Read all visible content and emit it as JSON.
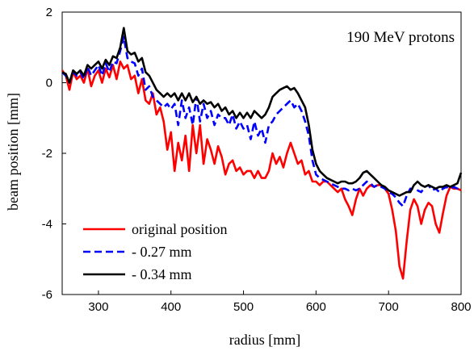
{
  "chart_data": {
    "type": "line",
    "title": "",
    "annotation": "190 MeV protons",
    "xlabel": "radius [mm]",
    "ylabel": "beam position [mm]",
    "xlim": [
      250,
      800
    ],
    "ylim": [
      -6,
      2
    ],
    "xticks": [
      300,
      400,
      500,
      600,
      700,
      800
    ],
    "yticks": [
      -6,
      -4,
      -2,
      0,
      2
    ],
    "x_tick_labels": [
      "300",
      "400",
      "500",
      "600",
      "700",
      "800"
    ],
    "y_tick_labels": [
      "-6",
      "-4",
      "-2",
      "0",
      "2"
    ],
    "grid": false,
    "legend_position": "bottom-left",
    "series": [
      {
        "name": "original position",
        "color": "#ff0000",
        "dash": "solid",
        "x": [
          250,
          255,
          260,
          265,
          270,
          275,
          280,
          285,
          290,
          295,
          300,
          305,
          310,
          315,
          320,
          325,
          330,
          335,
          340,
          345,
          350,
          355,
          360,
          365,
          370,
          375,
          380,
          385,
          390,
          395,
          400,
          405,
          410,
          415,
          420,
          425,
          430,
          435,
          440,
          445,
          450,
          455,
          460,
          465,
          470,
          475,
          480,
          485,
          490,
          495,
          500,
          505,
          510,
          515,
          520,
          525,
          530,
          535,
          540,
          545,
          550,
          555,
          560,
          565,
          570,
          575,
          580,
          585,
          590,
          595,
          600,
          605,
          610,
          615,
          620,
          625,
          630,
          635,
          640,
          645,
          650,
          655,
          660,
          665,
          670,
          675,
          680,
          685,
          690,
          695,
          700,
          705,
          710,
          715,
          720,
          725,
          730,
          735,
          740,
          745,
          750,
          755,
          760,
          765,
          770,
          775,
          780,
          785,
          790,
          795,
          800
        ],
        "y": [
          0.35,
          0.2,
          -0.2,
          0.3,
          0.1,
          0.2,
          0.0,
          0.4,
          -0.1,
          0.2,
          0.35,
          0.0,
          0.4,
          0.15,
          0.5,
          0.1,
          0.6,
          0.4,
          0.5,
          0.1,
          0.2,
          -0.3,
          0.1,
          -0.5,
          -0.6,
          -0.3,
          -0.9,
          -0.7,
          -1.1,
          -1.9,
          -1.4,
          -2.5,
          -1.7,
          -2.2,
          -1.5,
          -2.5,
          -1.2,
          -2.0,
          -1.2,
          -2.3,
          -1.6,
          -1.9,
          -2.3,
          -1.8,
          -2.1,
          -2.6,
          -2.3,
          -2.2,
          -2.5,
          -2.4,
          -2.6,
          -2.5,
          -2.5,
          -2.7,
          -2.5,
          -2.7,
          -2.7,
          -2.5,
          -2.0,
          -2.3,
          -2.1,
          -2.4,
          -2.0,
          -1.7,
          -2.0,
          -2.3,
          -2.2,
          -2.6,
          -2.5,
          -2.8,
          -2.8,
          -2.9,
          -2.8,
          -2.8,
          -2.9,
          -3.0,
          -3.1,
          -3.0,
          -3.3,
          -3.5,
          -3.75,
          -3.3,
          -3.0,
          -3.2,
          -3.0,
          -2.9,
          -2.95,
          -2.9,
          -2.9,
          -3.0,
          -3.15,
          -3.6,
          -4.2,
          -5.2,
          -5.55,
          -4.5,
          -3.6,
          -3.3,
          -3.5,
          -4.0,
          -3.6,
          -3.4,
          -3.5,
          -4.0,
          -4.25,
          -3.7,
          -3.2,
          -2.95,
          -3.0,
          -3.0,
          -3.05
        ]
      },
      {
        "name": "- 0.27 mm",
        "color": "#0000ff",
        "dash": "dashed",
        "x": [
          250,
          255,
          260,
          265,
          270,
          275,
          280,
          285,
          290,
          295,
          300,
          305,
          310,
          315,
          320,
          325,
          330,
          335,
          340,
          345,
          350,
          355,
          360,
          365,
          370,
          375,
          380,
          385,
          390,
          395,
          400,
          405,
          410,
          415,
          420,
          425,
          430,
          435,
          440,
          445,
          450,
          455,
          460,
          465,
          470,
          475,
          480,
          485,
          490,
          495,
          500,
          505,
          510,
          515,
          520,
          525,
          530,
          535,
          540,
          545,
          550,
          555,
          560,
          565,
          570,
          575,
          580,
          585,
          590,
          595,
          600,
          605,
          610,
          615,
          620,
          625,
          630,
          635,
          640,
          645,
          650,
          655,
          660,
          665,
          670,
          675,
          680,
          685,
          690,
          695,
          700,
          705,
          710,
          715,
          720,
          725,
          730,
          735,
          740,
          745,
          750,
          755,
          760,
          765,
          770,
          775,
          780,
          785,
          790,
          795,
          800
        ],
        "y": [
          0.3,
          0.2,
          0.0,
          0.3,
          0.2,
          0.3,
          0.1,
          0.45,
          0.2,
          0.35,
          0.5,
          0.2,
          0.55,
          0.3,
          0.6,
          0.55,
          0.9,
          1.3,
          0.7,
          0.6,
          0.55,
          0.2,
          0.4,
          -0.2,
          -0.1,
          -0.4,
          -0.5,
          -0.6,
          -0.7,
          -0.6,
          -0.75,
          -0.6,
          -1.2,
          -0.5,
          -1.0,
          -0.7,
          -1.2,
          -0.4,
          -1.1,
          -0.6,
          -1.0,
          -0.8,
          -1.2,
          -0.9,
          -1.0,
          -1.0,
          -1.2,
          -0.9,
          -1.3,
          -1.1,
          -1.3,
          -1.2,
          -1.6,
          -1.1,
          -1.5,
          -1.3,
          -1.7,
          -1.2,
          -1.1,
          -0.9,
          -0.8,
          -0.7,
          -0.6,
          -0.5,
          -0.7,
          -0.6,
          -0.8,
          -1.1,
          -1.5,
          -2.2,
          -2.6,
          -2.7,
          -2.75,
          -2.8,
          -2.85,
          -2.9,
          -2.95,
          -3.0,
          -3.0,
          -3.05,
          -3.0,
          -3.05,
          -3.0,
          -2.9,
          -2.8,
          -2.85,
          -2.95,
          -2.9,
          -2.95,
          -3.0,
          -3.1,
          -3.15,
          -3.25,
          -3.4,
          -3.5,
          -3.2,
          -3.0,
          -3.0,
          -3.05,
          -3.1,
          -2.95,
          -2.9,
          -3.05,
          -3.0,
          -3.1,
          -3.0,
          -2.95,
          -3.0,
          -2.95,
          -3.0,
          -3.0
        ]
      },
      {
        "name": "- 0.34 mm",
        "color": "#000000",
        "dash": "solid",
        "x": [
          250,
          255,
          260,
          265,
          270,
          275,
          280,
          285,
          290,
          295,
          300,
          305,
          310,
          315,
          320,
          325,
          330,
          335,
          340,
          345,
          350,
          355,
          360,
          365,
          370,
          375,
          380,
          385,
          390,
          395,
          400,
          405,
          410,
          415,
          420,
          425,
          430,
          435,
          440,
          445,
          450,
          455,
          460,
          465,
          470,
          475,
          480,
          485,
          490,
          495,
          500,
          505,
          510,
          515,
          520,
          525,
          530,
          535,
          540,
          545,
          550,
          555,
          560,
          565,
          570,
          575,
          580,
          585,
          590,
          595,
          600,
          605,
          610,
          615,
          620,
          625,
          630,
          635,
          640,
          645,
          650,
          655,
          660,
          665,
          670,
          675,
          680,
          685,
          690,
          695,
          700,
          705,
          710,
          715,
          720,
          725,
          730,
          735,
          740,
          745,
          750,
          755,
          760,
          765,
          770,
          775,
          780,
          785,
          790,
          795,
          800
        ],
        "y": [
          0.3,
          0.25,
          0.0,
          0.35,
          0.25,
          0.35,
          0.2,
          0.5,
          0.4,
          0.5,
          0.6,
          0.4,
          0.65,
          0.5,
          0.75,
          0.7,
          1.0,
          1.55,
          0.9,
          0.8,
          0.85,
          0.6,
          0.7,
          0.3,
          0.2,
          0.0,
          -0.2,
          -0.3,
          -0.4,
          -0.3,
          -0.4,
          -0.3,
          -0.5,
          -0.3,
          -0.5,
          -0.3,
          -0.55,
          -0.4,
          -0.6,
          -0.5,
          -0.6,
          -0.55,
          -0.7,
          -0.6,
          -0.8,
          -0.7,
          -0.9,
          -0.8,
          -1.0,
          -0.85,
          -1.0,
          -0.85,
          -1.0,
          -0.8,
          -0.9,
          -1.0,
          -0.9,
          -0.7,
          -0.4,
          -0.3,
          -0.2,
          -0.15,
          -0.1,
          -0.2,
          -0.15,
          -0.3,
          -0.5,
          -0.7,
          -1.2,
          -1.9,
          -2.3,
          -2.5,
          -2.6,
          -2.7,
          -2.75,
          -2.8,
          -2.85,
          -2.8,
          -2.8,
          -2.85,
          -2.85,
          -2.8,
          -2.7,
          -2.55,
          -2.5,
          -2.6,
          -2.7,
          -2.8,
          -2.9,
          -2.95,
          -3.05,
          -3.1,
          -3.15,
          -3.2,
          -3.15,
          -3.1,
          -3.1,
          -2.9,
          -2.8,
          -2.9,
          -2.95,
          -2.9,
          -2.95,
          -3.0,
          -2.95,
          -2.95,
          -2.9,
          -2.95,
          -2.9,
          -2.85,
          -2.55
        ]
      }
    ]
  }
}
